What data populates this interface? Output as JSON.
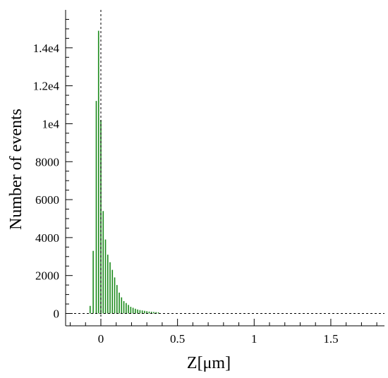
{
  "chart_data": {
    "type": "bar",
    "xlabel": "Z[μm]",
    "ylabel": "Number of events",
    "xlim": [
      -0.23,
      1.85
    ],
    "ylim": [
      -650,
      16000
    ],
    "x_ticks": [
      0,
      0.5,
      1,
      1.5
    ],
    "x_tick_labels": [
      "0",
      "0.5",
      "1",
      "1.5"
    ],
    "y_ticks": [
      0,
      2000,
      4000,
      6000,
      8000,
      10000,
      12000,
      14000
    ],
    "y_tick_labels": [
      "0",
      "2000",
      "4000",
      "6000",
      "8000",
      "1e4",
      "1.2e4",
      "1.4e4"
    ],
    "bar_color": "#1a8a1a",
    "reference_lines": {
      "vertical_x": 0,
      "horizontal_y": 0,
      "style": "dashed"
    },
    "x": [
      -0.07,
      -0.05,
      -0.03,
      -0.015,
      0,
      0.015,
      0.03,
      0.045,
      0.06,
      0.075,
      0.09,
      0.105,
      0.12,
      0.135,
      0.15,
      0.165,
      0.18,
      0.195,
      0.21,
      0.225,
      0.24,
      0.255,
      0.27,
      0.285,
      0.3,
      0.315,
      0.33,
      0.345,
      0.36,
      0.375
    ],
    "values": [
      400,
      3300,
      11200,
      14900,
      10200,
      5400,
      3900,
      3100,
      2700,
      2300,
      1900,
      1500,
      1100,
      850,
      650,
      550,
      450,
      350,
      300,
      250,
      210,
      180,
      160,
      140,
      120,
      100,
      90,
      80,
      70,
      60
    ]
  }
}
